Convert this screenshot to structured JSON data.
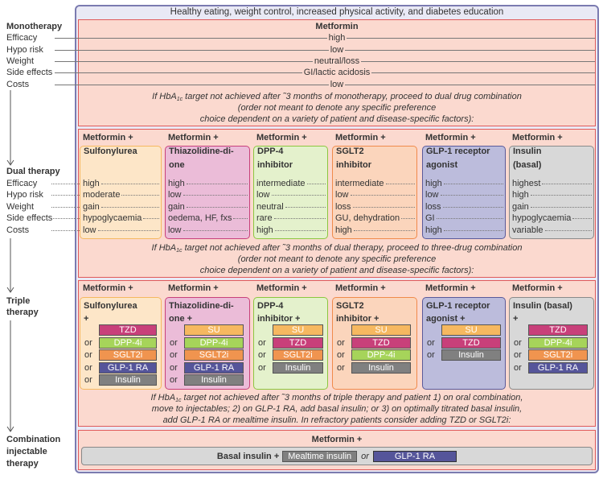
{
  "banner": "Healthy eating, weight control, increased physical activity, and diabetes education",
  "monotherapy": {
    "label": "Monotherapy",
    "row_labels": [
      "Efficacy",
      "Hypo risk",
      "Weight",
      "Side effects",
      "Costs"
    ],
    "drug": "Metformin",
    "values": [
      "high",
      "low",
      "neutral/loss",
      "GI/lactic acidosis",
      "low"
    ],
    "note": {
      "first": [
        "If HbA",
        "1c",
        " target not achieved after ˜3 months of monotherapy, proceed to dual drug combination"
      ],
      "rest": [
        "(order not meant to denote any specific preference",
        "choice dependent on a variety of patient and disease-specific factors):"
      ]
    }
  },
  "dual": {
    "label": "Dual therapy",
    "row_labels": [
      "Efficacy",
      "Hypo risk",
      "Weight",
      "Side effects",
      "Costs"
    ],
    "columns": [
      {
        "header": "Metformin +",
        "drug": [
          "Sulfonylurea"
        ],
        "color": "#fde6c8",
        "border": "#f5b860",
        "values": [
          "high",
          "moderate",
          "gain",
          "hypoglycaemia",
          "low"
        ]
      },
      {
        "header": "Metformin +",
        "drug": [
          "Thiazolidine-di-",
          "one"
        ],
        "color": "#ebbcd8",
        "border": "#c8407a",
        "values": [
          "high",
          "low",
          "gain",
          "oedema, HF, fxs",
          "low"
        ]
      },
      {
        "header": "Metformin +",
        "drug": [
          "DPP-4",
          "inhibitor"
        ],
        "color": "#e4f1cc",
        "border": "#8cc63f",
        "values": [
          "intermediate",
          "low",
          "neutral",
          "rare",
          "high"
        ]
      },
      {
        "header": "Metformin +",
        "drug": [
          "SGLT2",
          "inhibitor"
        ],
        "color": "#fbd5bc",
        "border": "#f08a4b",
        "values": [
          "intermediate",
          "low",
          "loss",
          "GU, dehydration",
          "high"
        ]
      },
      {
        "header": "Metformin +",
        "drug": [
          "GLP-1 receptor",
          "agonist"
        ],
        "color": "#bcbcdc",
        "border": "#5a5a9a",
        "values": [
          "high",
          "low",
          "loss",
          "GI",
          "high"
        ]
      },
      {
        "header": "Metformin +",
        "drug": [
          "Insulin",
          "(basal)"
        ],
        "color": "#d8d8d8",
        "border": "#8a8a8a",
        "values": [
          "highest",
          "high",
          "gain",
          "hypoglycaemia",
          "variable"
        ]
      }
    ],
    "note": {
      "first": [
        "If HbA",
        "1c",
        " target not achieved after ˜3 months of dual therapy, proceed to three-drug combination"
      ],
      "rest": [
        "(order not meant to denote any specific preference",
        "choice dependent on a variety of patient and disease-specific factors):"
      ]
    }
  },
  "triple": {
    "label": [
      "Triple",
      "therapy"
    ],
    "or_word": "or",
    "columns": [
      {
        "header": "Metformin +",
        "drug": [
          "Sulfonylurea",
          "+"
        ],
        "color": "#fde6c8",
        "border": "#f5b860",
        "options": [
          {
            "text": "TZD",
            "color": "#c8407a"
          },
          {
            "text": "DPP-4i",
            "color": "#a6d45a"
          },
          {
            "text": "SGLT2i",
            "color": "#f0944f"
          },
          {
            "text": "GLP-1 RA",
            "color": "#55559a"
          },
          {
            "text": "Insulin",
            "color": "#808080"
          }
        ]
      },
      {
        "header": "Metformin +",
        "drug": [
          "Thiazolidine-di-",
          "one +"
        ],
        "color": "#ebbcd8",
        "border": "#c8407a",
        "options": [
          {
            "text": "SU",
            "color": "#f6b860"
          },
          {
            "text": "DPP-4i",
            "color": "#a6d45a"
          },
          {
            "text": "SGLT2i",
            "color": "#f0944f"
          },
          {
            "text": "GLP-1 RA",
            "color": "#55559a"
          },
          {
            "text": "Insulin",
            "color": "#808080"
          }
        ]
      },
      {
        "header": "Metformin +",
        "drug": [
          "DPP-4",
          "inhibitor +"
        ],
        "color": "#e4f1cc",
        "border": "#8cc63f",
        "options": [
          {
            "text": "SU",
            "color": "#f6b860"
          },
          {
            "text": "TZD",
            "color": "#c8407a"
          },
          {
            "text": "SGLT2i",
            "color": "#f0944f"
          },
          {
            "text": "Insulin",
            "color": "#808080"
          }
        ]
      },
      {
        "header": "Metformin +",
        "drug": [
          "SGLT2",
          "inhibitor +"
        ],
        "color": "#fbd5bc",
        "border": "#f08a4b",
        "options": [
          {
            "text": "SU",
            "color": "#f6b860"
          },
          {
            "text": "TZD",
            "color": "#c8407a"
          },
          {
            "text": "DPP-4i",
            "color": "#a6d45a"
          },
          {
            "text": "Insulin",
            "color": "#808080"
          }
        ]
      },
      {
        "header": "Metformin +",
        "drug": [
          "GLP-1 receptor",
          "agonist +"
        ],
        "color": "#bcbcdc",
        "border": "#5a5a9a",
        "options": [
          {
            "text": "SU",
            "color": "#f6b860"
          },
          {
            "text": "TZD",
            "color": "#c8407a"
          },
          {
            "text": "Insulin",
            "color": "#808080"
          }
        ]
      },
      {
        "header": "Metformin +",
        "drug": [
          "Insulin (basal)",
          "+"
        ],
        "color": "#d8d8d8",
        "border": "#8a8a8a",
        "options": [
          {
            "text": "TZD",
            "color": "#c8407a"
          },
          {
            "text": "DPP-4i",
            "color": "#a6d45a"
          },
          {
            "text": "SGLT2i",
            "color": "#f0944f"
          },
          {
            "text": "GLP-1 RA",
            "color": "#55559a"
          }
        ]
      }
    ],
    "note": {
      "first": [
        "If HbA",
        "1c",
        " target not achieved after ˜3 months of triple therapy and patient 1) on oral combination,"
      ],
      "rest": [
        "move to injectables; 2) on GLP-1 RA, add basal insulin; or 3) on optimally titrated basal insulin,",
        "add GLP-1 RA or mealtime insulin. In refractory patients consider adding TZD or SGLT2i:"
      ]
    }
  },
  "combination": {
    "label": [
      "Combination",
      "injectable",
      "therapy"
    ],
    "header": "Metformin +",
    "basal": "Basal insulin +",
    "option1": "Mealtime insulin",
    "or_word": "or",
    "option2": "GLP-1 RA"
  }
}
